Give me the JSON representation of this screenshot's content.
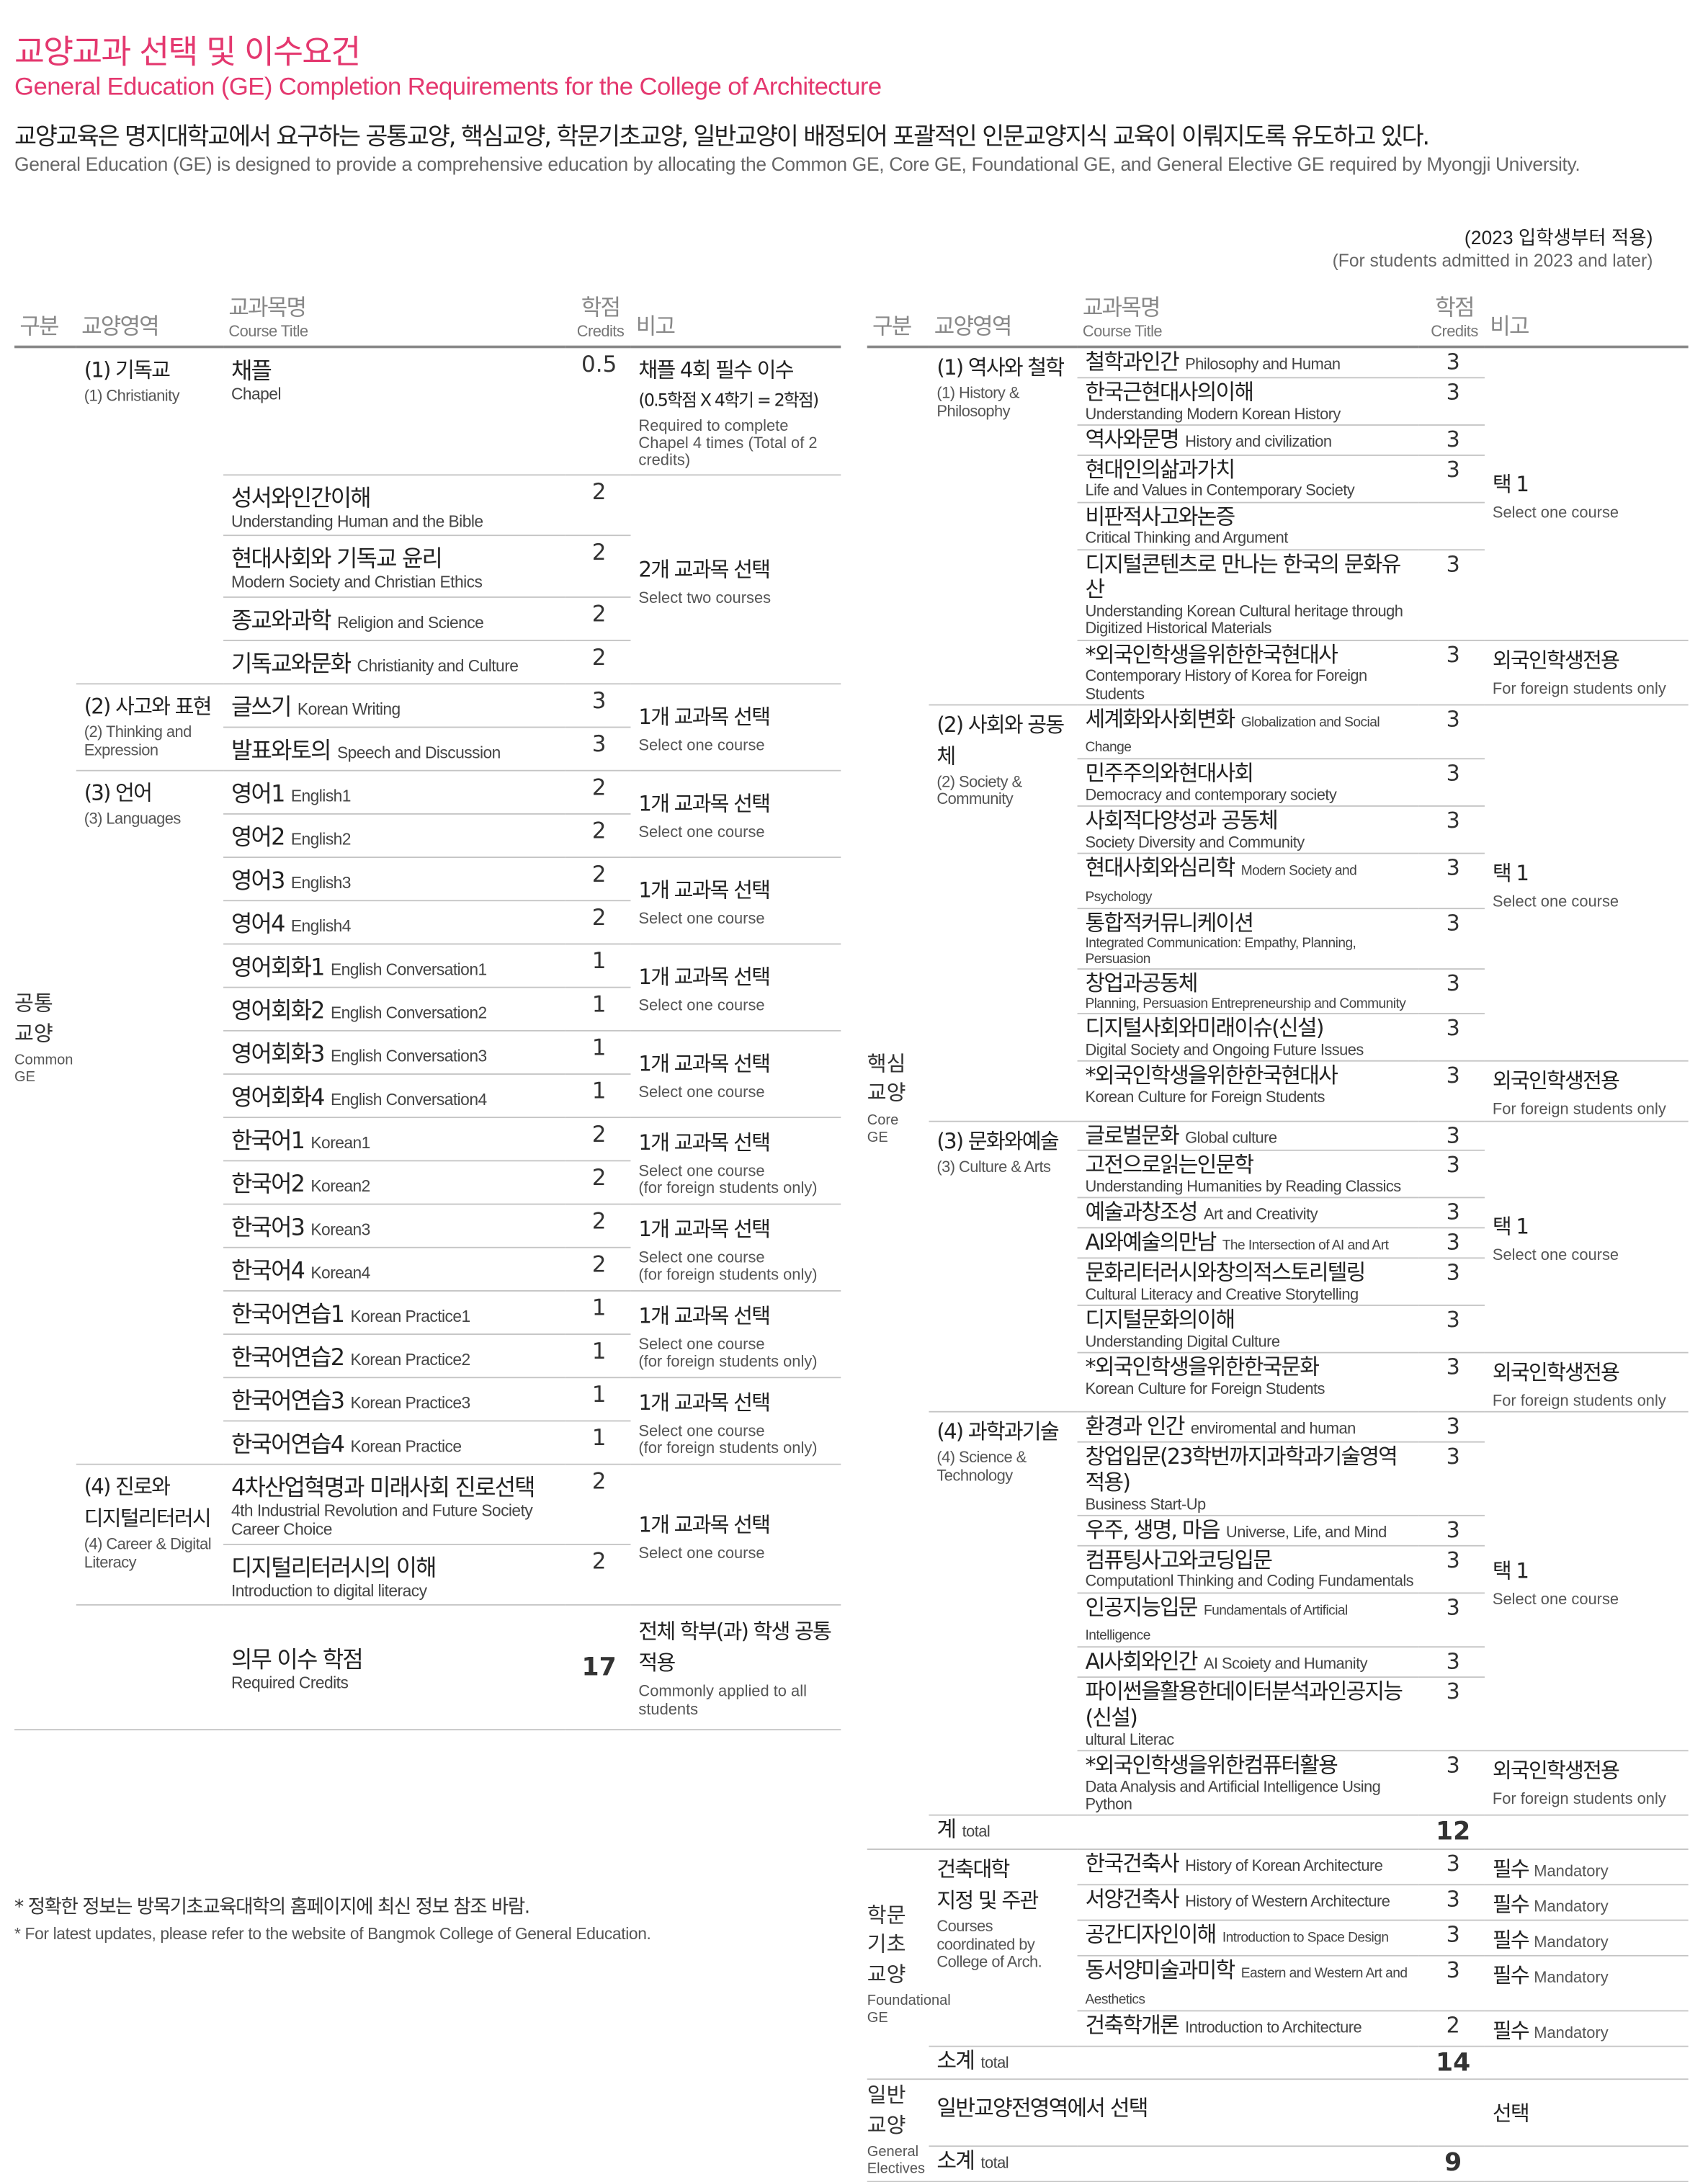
{
  "header": {
    "title_kr": "교양교과 선택 및 이수요건",
    "title_en": "General Education (GE) Completion Requirements for the College of Architecture",
    "desc_kr": "교양교육은 명지대학교에서 요구하는 공통교양, 핵심교양, 학문기초교양, 일반교양이 배정되어 포괄적인 인문교양지식 교육이 이뤄지도록 유도하고 있다.",
    "desc_en": "General Education (GE) is designed to provide a comprehensive education by allocating the Common GE, Core GE, Foundational GE, and General Elective GE required by Myongji University.",
    "applies_kr": "(2023 입학생부터 적용)",
    "applies_en": "(For students admitted in 2023 and later)",
    "accent_color": "#e4386f"
  },
  "columns": {
    "section": "구분",
    "area": "교양영역",
    "course_kr": "교과목명",
    "course_en": "Course Title",
    "credits_kr": "학점",
    "credits_en": "Credits",
    "note": "비고"
  },
  "tables": [
    {
      "sections": [
        {
          "kr": "공통\n교양",
          "en": "Common\nGE",
          "areas": [
            {
              "kr": "(1) 기독교",
              "en": "(1) Christianity",
              "courses": [
                {
                  "kr": "채플",
                  "en": "Chapel",
                  "credit": "0.5",
                  "en_below": true
                },
                {
                  "kr": "성서와인간이해",
                  "en": "Understanding Human and the Bible",
                  "credit": "2",
                  "en_below": true
                },
                {
                  "kr": "현대사회와 기독교 윤리",
                  "en": "Modern Society and Christian Ethics",
                  "credit": "2",
                  "en_below": true
                },
                {
                  "kr": "종교와과학",
                  "en": "Religion and Science",
                  "credit": "2"
                },
                {
                  "kr": "기독교와문화",
                  "en": "Christianity and Culture",
                  "credit": "2"
                }
              ],
              "notes": [
                {
                  "span": 1,
                  "kr": "채플 4회 필수 이수",
                  "kr2": "(0.5학점 X 4학기 = 2학점)",
                  "en": "Required to complete Chapel 4 times (Total of 2 credits)"
                },
                {
                  "span": 4,
                  "kr": "2개 교과목 선택",
                  "en": "Select two courses"
                }
              ]
            },
            {
              "kr": "(2) 사고와 표현",
              "en": "(2) Thinking and Expression",
              "courses": [
                {
                  "kr": "글쓰기",
                  "en": "Korean Writing",
                  "credit": "3"
                },
                {
                  "kr": "발표와토의",
                  "en": "Speech and Discussion",
                  "credit": "3"
                }
              ],
              "notes": [
                {
                  "span": 2,
                  "kr": "1개 교과목 선택",
                  "en": "Select one course"
                }
              ]
            },
            {
              "kr": "(3) 언어",
              "en": "(3) Languages",
              "courses": [
                {
                  "kr": "영어1",
                  "en": "English1",
                  "credit": "2"
                },
                {
                  "kr": "영어2",
                  "en": "English2",
                  "credit": "2"
                },
                {
                  "kr": "영어3",
                  "en": "English3",
                  "credit": "2"
                },
                {
                  "kr": "영어4",
                  "en": "English4",
                  "credit": "2"
                },
                {
                  "kr": "영어회화1",
                  "en": "English Conversation1",
                  "credit": "1"
                },
                {
                  "kr": "영어회화2",
                  "en": "English Conversation2",
                  "credit": "1"
                },
                {
                  "kr": "영어회화3",
                  "en": "English Conversation3",
                  "credit": "1"
                },
                {
                  "kr": "영어회화4",
                  "en": "English Conversation4",
                  "credit": "1"
                },
                {
                  "kr": "한국어1",
                  "en": "Korean1",
                  "credit": "2"
                },
                {
                  "kr": "한국어2",
                  "en": "Korean2",
                  "credit": "2"
                },
                {
                  "kr": "한국어3",
                  "en": "Korean3",
                  "credit": "2"
                },
                {
                  "kr": "한국어4",
                  "en": "Korean4",
                  "credit": "2"
                },
                {
                  "kr": "한국어연습1",
                  "en": "Korean Practice1",
                  "credit": "1"
                },
                {
                  "kr": "한국어연습2",
                  "en": "Korean Practice2",
                  "credit": "1"
                },
                {
                  "kr": "한국어연습3",
                  "en": "Korean Practice3",
                  "credit": "1"
                },
                {
                  "kr": "한국어연습4",
                  "en": "Korean Practice",
                  "credit": "1"
                }
              ],
              "notes": [
                {
                  "span": 2,
                  "kr": "1개 교과목 선택",
                  "en": "Select one course"
                },
                {
                  "span": 2,
                  "kr": "1개 교과목 선택",
                  "en": "Select one course"
                },
                {
                  "span": 2,
                  "kr": "1개 교과목 선택",
                  "en": "Select one course"
                },
                {
                  "span": 2,
                  "kr": "1개 교과목 선택",
                  "en": "Select one course"
                },
                {
                  "span": 2,
                  "kr": "1개 교과목 선택",
                  "en": "Select one course\n(for foreign students only)"
                },
                {
                  "span": 2,
                  "kr": "1개 교과목 선택",
                  "en": "Select one course\n(for foreign students only)"
                },
                {
                  "span": 2,
                  "kr": "1개 교과목 선택",
                  "en": "Select one course\n(for foreign students only)"
                },
                {
                  "span": 2,
                  "kr": "1개 교과목 선택",
                  "en": "Select one course\n(for foreign students only)"
                }
              ]
            },
            {
              "kr": "(4) 진로와\n디지털리터러시",
              "en": "(4) Career & Digital\nLiteracy",
              "courses": [
                {
                  "kr": "4차산업혁명과 미래사회 진로선택",
                  "en": "4th Industrial Revolution and Future Society Career Choice",
                  "credit": "2",
                  "en_below": true
                },
                {
                  "kr": "디지털리터러시의 이해",
                  "en": "Introduction to digital literacy",
                  "credit": "2",
                  "en_below": true
                }
              ],
              "notes": [
                {
                  "span": 2,
                  "kr": "1개 교과목 선택",
                  "en": "Select one course"
                }
              ]
            }
          ],
          "totals": [
            {
              "kr": "의무 이수 학점",
              "en": "Required Credits",
              "credit": "17",
              "note_kr": "전체 학부(과) 학생 공통 적용",
              "note_en": "Commonly applied to all students"
            }
          ]
        }
      ]
    },
    {
      "sections": [
        {
          "kr": "핵심\n교양",
          "en": "Core\nGE",
          "areas": [
            {
              "kr": "(1) 역사와 철학",
              "en": "(1) History &\nPhilosophy",
              "courses": [
                {
                  "kr": "철학과인간",
                  "en": "Philosophy and Human",
                  "credit": "3"
                },
                {
                  "kr": "한국근현대사의이해",
                  "en": "Understanding Modern Korean History",
                  "credit": "3",
                  "en_below": true
                },
                {
                  "kr": "역사와문명",
                  "en": "History and civilization",
                  "credit": "3"
                },
                {
                  "kr": "현대인의삶과가치",
                  "en": "Life and Values in Contemporary Society",
                  "credit": "3",
                  "en_below": true
                },
                {
                  "kr": "비판적사고와논증",
                  "en": "Critical Thinking and Argument",
                  "credit": "",
                  "en_below": true
                },
                {
                  "kr": "디지털콘텐츠로 만나는 한국의 문화유산",
                  "en": "Understanding Korean Cultural heritage through Digitized Historical Materials",
                  "credit": "3",
                  "en_below": true
                },
                {
                  "kr": "*외국인학생을위한한국현대사",
                  "en": "Contemporary History of Korea for Foreign Students",
                  "credit": "3",
                  "en_below": true
                }
              ],
              "notes": [
                {
                  "span": 6,
                  "kr": "택 1",
                  "en": "Select one course"
                },
                {
                  "span": 1,
                  "kr": "외국인학생전용",
                  "en": "For foreign students only"
                }
              ]
            },
            {
              "kr": "(2) 사회와 공동체",
              "en": "(2) Society &\nCommunity",
              "courses": [
                {
                  "kr": "세계화와사회변화",
                  "en": "Globalization and Social Change",
                  "credit": "3",
                  "small": true
                },
                {
                  "kr": "민주주의와현대사회",
                  "en": "Democracy and contemporary society",
                  "credit": "3",
                  "en_below": true
                },
                {
                  "kr": "사회적다양성과 공동체",
                  "en": "Society Diversity and Community",
                  "credit": "3",
                  "en_below": true
                },
                {
                  "kr": "현대사회와심리학",
                  "en": "Modern Society and Psychology",
                  "credit": "3",
                  "small": true
                },
                {
                  "kr": "통합적커뮤니케이션",
                  "en": "Integrated Communication: Empathy, Planning, Persuasion",
                  "credit": "3",
                  "en_below": true,
                  "small": true
                },
                {
                  "kr": "창업과공동체",
                  "en": "Planning, Persuasion Entrepreneurship and Community",
                  "credit": "3",
                  "en_below": true,
                  "small": true
                },
                {
                  "kr": "디지털사회와미래이슈(신설)",
                  "en": "Digital Society and Ongoing Future Issues",
                  "credit": "3",
                  "en_below": true
                },
                {
                  "kr": "*외국인학생을위한한국현대사",
                  "en": "Korean Culture for Foreign Students",
                  "credit": "3",
                  "en_below": true
                }
              ],
              "notes": [
                {
                  "span": 7,
                  "kr": "택 1",
                  "en": "Select one course"
                },
                {
                  "span": 1,
                  "kr": "외국인학생전용",
                  "en": "For foreign students only"
                }
              ]
            },
            {
              "kr": "(3) 문화와예술",
              "en": "(3) Culture & Arts",
              "courses": [
                {
                  "kr": "글로벌문화",
                  "en": "Global culture",
                  "credit": "3"
                },
                {
                  "kr": "고전으로읽는인문학",
                  "en": "Understanding Humanities by Reading Classics",
                  "credit": "3",
                  "en_below": true
                },
                {
                  "kr": "예술과창조성",
                  "en": "Art and Creativity",
                  "credit": "3"
                },
                {
                  "kr": "AI와예술의만남",
                  "en": "The Intersection of AI and Art",
                  "credit": "3",
                  "small": true
                },
                {
                  "kr": "문화리터러시와창의적스토리텔링",
                  "en": "Cultural Literacy and Creative Storytelling",
                  "credit": "3",
                  "en_below": true
                },
                {
                  "kr": "디지털문화의이해",
                  "en": "Understanding Digital Culture",
                  "credit": "3",
                  "en_below": true
                },
                {
                  "kr": "*외국인학생을위한한국문화",
                  "en": "Korean Culture for Foreign Students",
                  "credit": "3",
                  "en_below": true
                }
              ],
              "notes": [
                {
                  "span": 6,
                  "kr": "택 1",
                  "en": "Select one course"
                },
                {
                  "span": 1,
                  "kr": "외국인학생전용",
                  "en": "For foreign students only"
                }
              ]
            },
            {
              "kr": "(4) 과학과기술",
              "en": "(4) Science &\nTechnology",
              "courses": [
                {
                  "kr": "환경과 인간",
                  "en": "enviromental and human",
                  "credit": "3"
                },
                {
                  "kr": "창업입문(23학번까지과학과기술영역적용)",
                  "en": "Business Start-Up",
                  "credit": "3",
                  "en_below": true
                },
                {
                  "kr": "우주, 생명, 마음",
                  "en": "Universe, Life, and Mind",
                  "credit": "3"
                },
                {
                  "kr": "컴퓨팅사고와코딩입문",
                  "en": "Computationl Thinking and Coding Fundamentals",
                  "credit": "3",
                  "en_below": true
                },
                {
                  "kr": "인공지능입문",
                  "en": "Fundamentals of Artificial Intelligence",
                  "credit": "3",
                  "small": true
                },
                {
                  "kr": "AI사회와인간",
                  "en": "AI Scoiety and Humanity",
                  "credit": "3"
                },
                {
                  "kr": "파이썬을활용한데이터분석과인공지능(신설)",
                  "en": "ultural Literac",
                  "credit": "3",
                  "en_below": true
                },
                {
                  "kr": "*외국인학생을위한컴퓨터활용",
                  "en": "Data Analysis and Artificial Intelligence Using Python",
                  "credit": "3",
                  "en_below": true
                }
              ],
              "notes": [
                {
                  "span": 7,
                  "kr": "택 1",
                  "en": "Select one course"
                },
                {
                  "span": 1,
                  "kr": "외국인학생전용",
                  "en": "For foreign students only"
                }
              ]
            }
          ],
          "totals": [
            {
              "kr": "계",
              "en": "total",
              "credit": "12"
            }
          ]
        },
        {
          "kr": "학문\n기초\n교양",
          "en": "Foundational\nGE",
          "areas": [
            {
              "kr": "건축대학\n지정 및 주관",
              "en": "Courses\ncoordinated by\nCollege of Arch.",
              "courses": [
                {
                  "kr": "한국건축사",
                  "en": "History of Korean Architecture",
                  "credit": "3"
                },
                {
                  "kr": "서양건축사",
                  "en": "History of Western Architecture",
                  "credit": "3"
                },
                {
                  "kr": "공간디자인이해",
                  "en": "Introduction to Space Design",
                  "credit": "3",
                  "small": true
                },
                {
                  "kr": "동서양미술과미학",
                  "en": "Eastern and Western Art and Aesthetics",
                  "credit": "3",
                  "small": true
                },
                {
                  "kr": "건축학개론",
                  "en": "Introduction to Architecture",
                  "credit": "2"
                }
              ],
              "notes": [
                {
                  "span": 1,
                  "kr": "필수",
                  "en": "Mandatory",
                  "mand": true
                },
                {
                  "span": 1,
                  "kr": "필수",
                  "en": "Mandatory",
                  "mand": true
                },
                {
                  "span": 1,
                  "kr": "필수",
                  "en": "Mandatory",
                  "mand": true
                },
                {
                  "span": 1,
                  "kr": "필수",
                  "en": "Mandatory",
                  "mand": true
                },
                {
                  "span": 1,
                  "kr": "필수",
                  "en": "Mandatory",
                  "mand": true
                }
              ]
            }
          ],
          "totals": [
            {
              "kr": "소계",
              "en": "total",
              "credit": "14"
            }
          ]
        },
        {
          "kr": "일반\n교양",
          "en": "General\nElectives",
          "areas": [],
          "rows": [
            {
              "kr": "일반교양전영역에서 선택",
              "note": "선택"
            }
          ],
          "totals": [
            {
              "kr": "소계",
              "en": "total",
              "credit": "9"
            }
          ]
        }
      ]
    }
  ],
  "footnotes": [
    "* 정확한 정보는 방목기초교육대학의 홈페이지에 최신 정보 참조 바람.",
    "* For latest updates, please refer to the website of Bangmok College of General Education."
  ]
}
